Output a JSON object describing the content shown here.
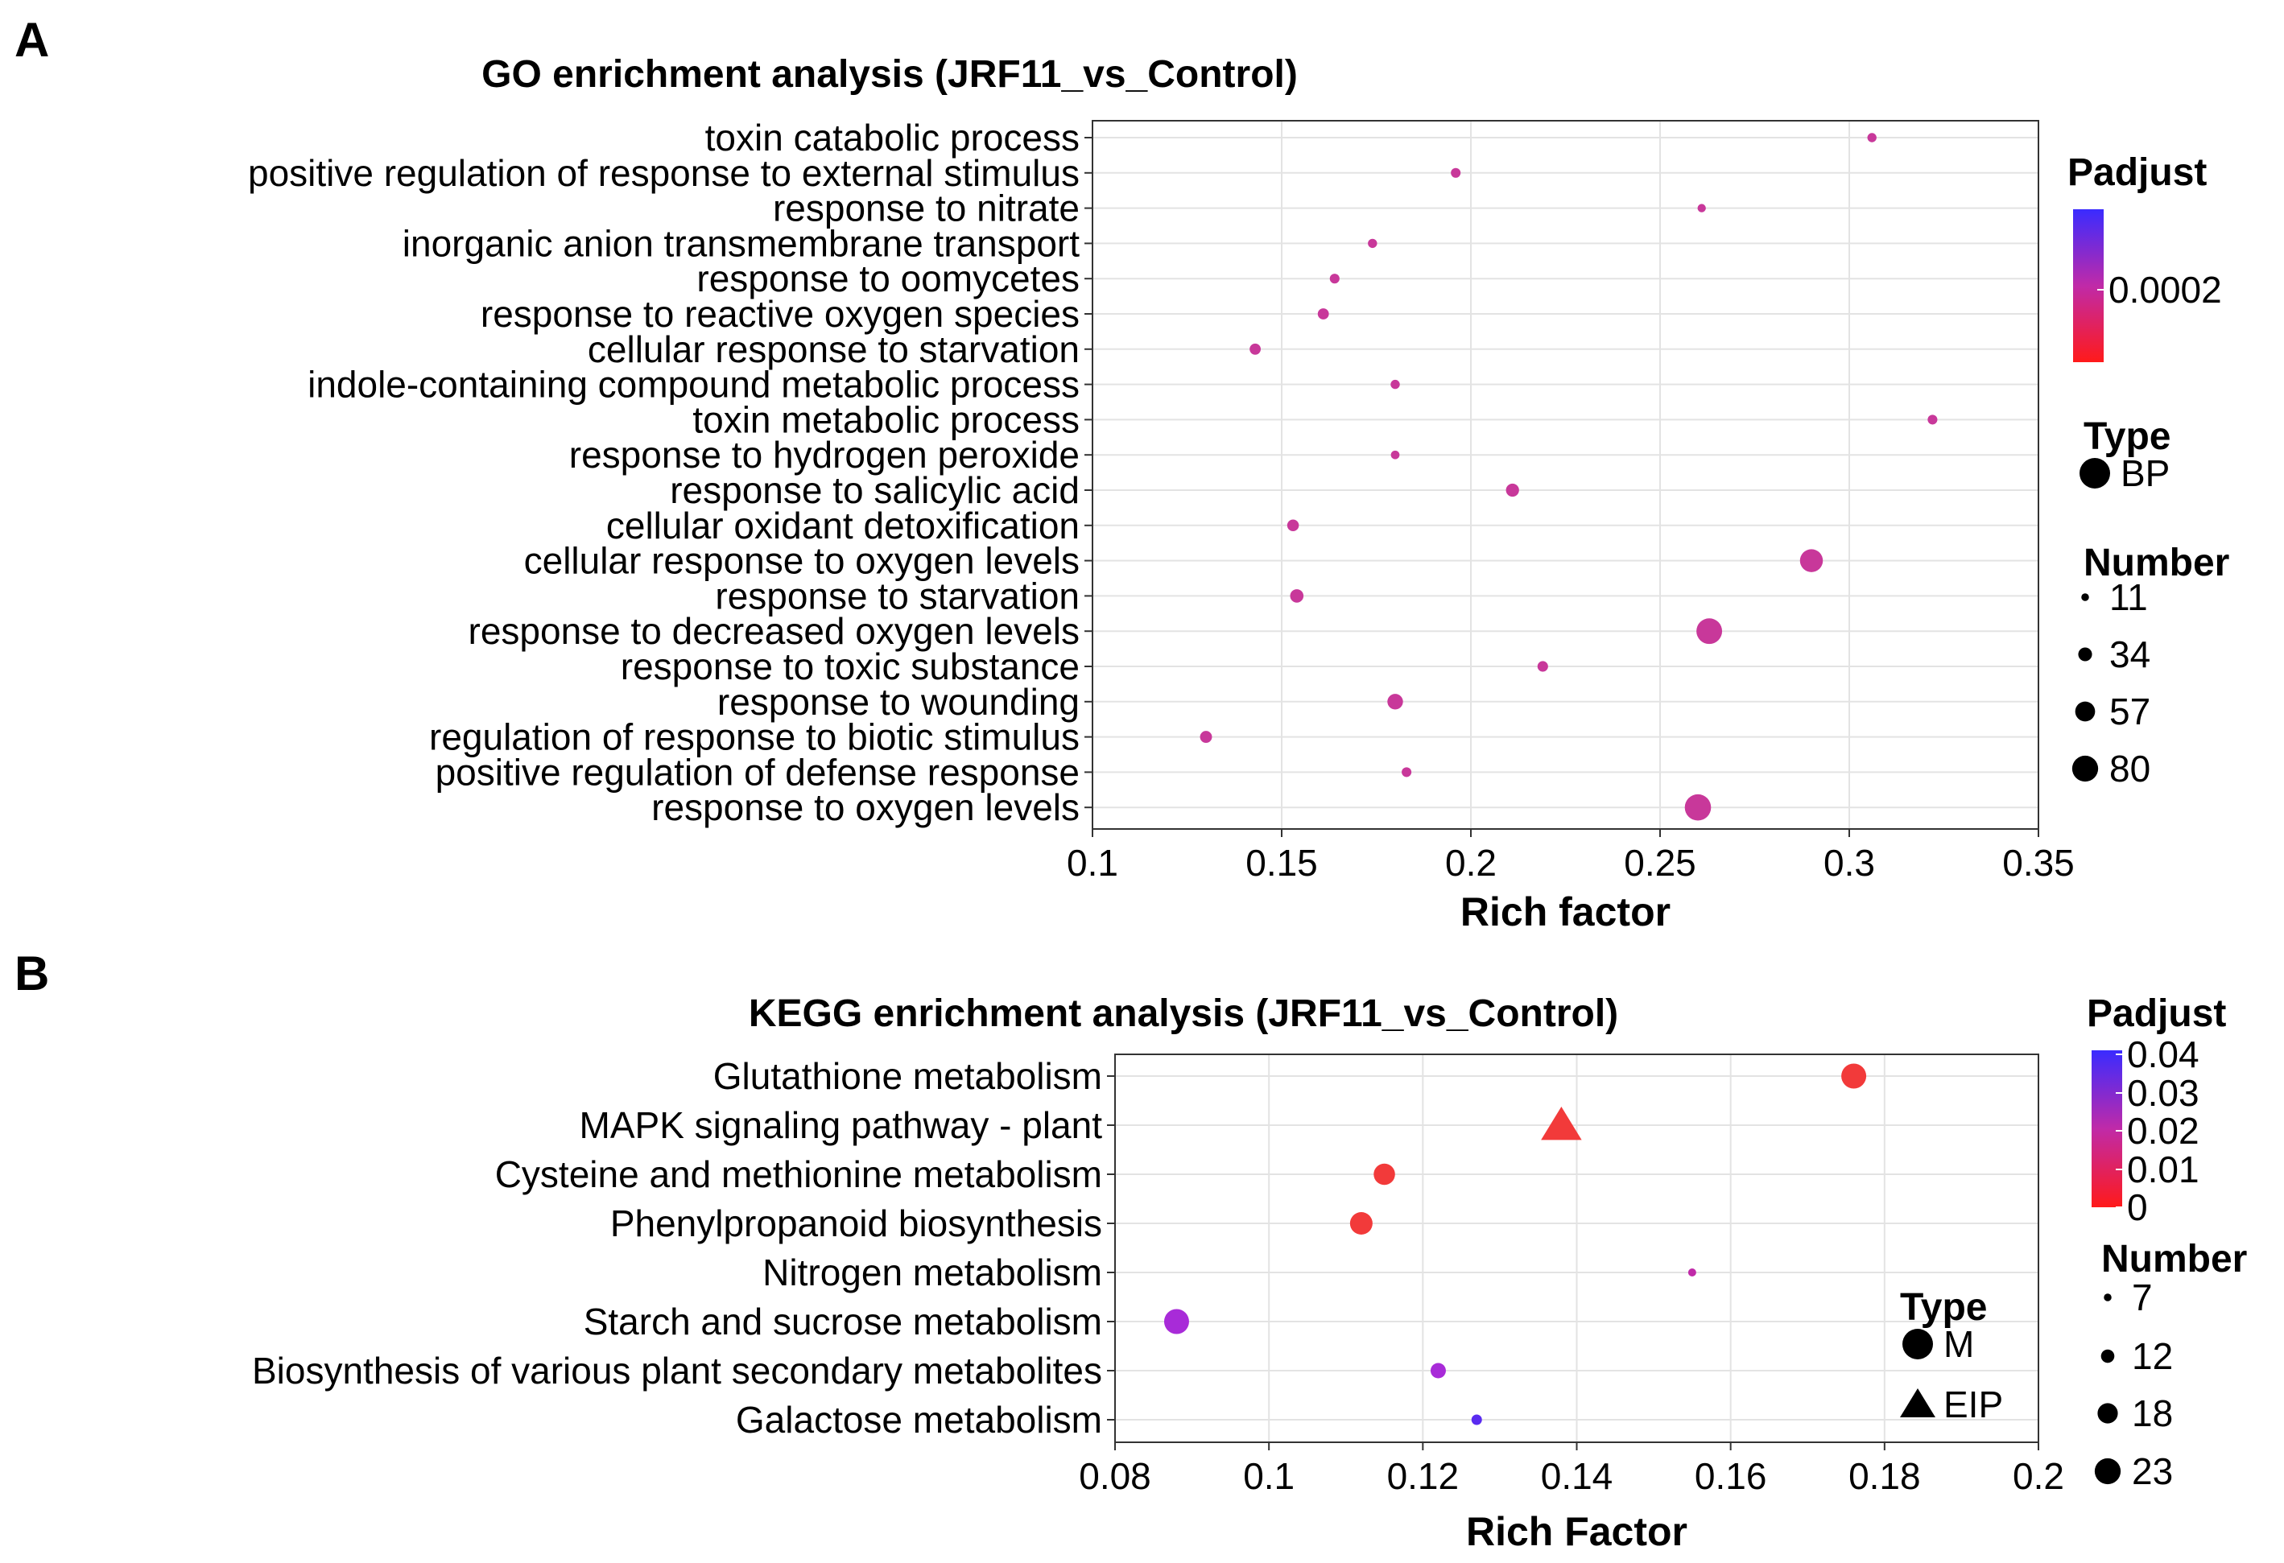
{
  "chart_data": [
    {
      "panel": "A",
      "type": "scatter",
      "title": "GO enrichment analysis (JRF11_vs_Control)",
      "xlabel": "Rich factor",
      "ylabel": "",
      "xlim": [
        0.1,
        0.35
      ],
      "x_ticks": [
        {
          "value": 0.1,
          "label": "0.1"
        },
        {
          "value": 0.15,
          "label": "0.15"
        },
        {
          "value": 0.2,
          "label": "0.2"
        },
        {
          "value": 0.25,
          "label": "0.25"
        },
        {
          "value": 0.3,
          "label": "0.3"
        },
        {
          "value": 0.35,
          "label": "0.35"
        }
      ],
      "grid": true,
      "legend_position": "right",
      "color_legend": {
        "title": "Padjust",
        "high_color": "#3a2bff",
        "low_color": "#ff1a1a",
        "tick_labels": [
          "0.0002"
        ]
      },
      "shape_legend": {
        "title": "Type",
        "items": [
          {
            "label": "BP",
            "shape": "circle"
          }
        ]
      },
      "size_legend": {
        "title": "Number",
        "items": [
          {
            "value": 11,
            "label": "11"
          },
          {
            "value": 34,
            "label": "34"
          },
          {
            "value": 57,
            "label": "57"
          },
          {
            "value": 80,
            "label": "80"
          }
        ]
      },
      "points": [
        {
          "term": "toxin catabolic process",
          "rich_factor": 0.306,
          "number": 15,
          "shape": "circle",
          "color": "#c8389a"
        },
        {
          "term": "positive regulation of response to external stimulus",
          "rich_factor": 0.196,
          "number": 17,
          "shape": "circle",
          "color": "#c8389a"
        },
        {
          "term": "response to nitrate",
          "rich_factor": 0.261,
          "number": 12,
          "shape": "circle",
          "color": "#c8389a"
        },
        {
          "term": "inorganic anion transmembrane transport",
          "rich_factor": 0.174,
          "number": 15,
          "shape": "circle",
          "color": "#c8389a"
        },
        {
          "term": "response to oomycetes",
          "rich_factor": 0.164,
          "number": 17,
          "shape": "circle",
          "color": "#c8389a"
        },
        {
          "term": "response to reactive oxygen species",
          "rich_factor": 0.161,
          "number": 22,
          "shape": "circle",
          "color": "#c8389a"
        },
        {
          "term": "cellular response to starvation",
          "rich_factor": 0.143,
          "number": 22,
          "shape": "circle",
          "color": "#c8389a"
        },
        {
          "term": "indole-containing compound metabolic process",
          "rich_factor": 0.18,
          "number": 15,
          "shape": "circle",
          "color": "#c8389a"
        },
        {
          "term": "toxin metabolic process",
          "rich_factor": 0.322,
          "number": 17,
          "shape": "circle",
          "color": "#c8389a"
        },
        {
          "term": "response to hydrogen peroxide",
          "rich_factor": 0.18,
          "number": 13,
          "shape": "circle",
          "color": "#c8389a"
        },
        {
          "term": "response to salicylic acid",
          "rich_factor": 0.211,
          "number": 29,
          "shape": "circle",
          "color": "#c8389a"
        },
        {
          "term": "cellular oxidant detoxification",
          "rich_factor": 0.153,
          "number": 24,
          "shape": "circle",
          "color": "#c8389a"
        },
        {
          "term": "cellular response to oxygen levels",
          "rich_factor": 0.29,
          "number": 64,
          "shape": "circle",
          "color": "#c8389a"
        },
        {
          "term": "response to starvation",
          "rich_factor": 0.154,
          "number": 30,
          "shape": "circle",
          "color": "#c8389a"
        },
        {
          "term": "response to decreased oxygen levels",
          "rich_factor": 0.263,
          "number": 74,
          "shape": "circle",
          "color": "#c8389a"
        },
        {
          "term": "response to toxic substance",
          "rich_factor": 0.219,
          "number": 20,
          "shape": "circle",
          "color": "#c8389a"
        },
        {
          "term": "response to wounding",
          "rich_factor": 0.18,
          "number": 38,
          "shape": "circle",
          "color": "#c8389a"
        },
        {
          "term": "regulation of response to biotic stimulus",
          "rich_factor": 0.13,
          "number": 25,
          "shape": "circle",
          "color": "#c8389a"
        },
        {
          "term": "positive regulation of defense response",
          "rich_factor": 0.183,
          "number": 17,
          "shape": "circle",
          "color": "#c8389a"
        },
        {
          "term": "response to oxygen levels",
          "rich_factor": 0.26,
          "number": 76,
          "shape": "circle",
          "color": "#c8389a"
        }
      ]
    },
    {
      "panel": "B",
      "type": "scatter",
      "title": "KEGG enrichment analysis (JRF11_vs_Control)",
      "xlabel": "Rich Factor",
      "ylabel": "",
      "xlim": [
        0.08,
        0.2
      ],
      "x_ticks": [
        {
          "value": 0.08,
          "label": "0.08"
        },
        {
          "value": 0.1,
          "label": "0.1"
        },
        {
          "value": 0.12,
          "label": "0.12"
        },
        {
          "value": 0.14,
          "label": "0.14"
        },
        {
          "value": 0.16,
          "label": "0.16"
        },
        {
          "value": 0.18,
          "label": "0.18"
        },
        {
          "value": 0.2,
          "label": "0.2"
        }
      ],
      "grid": true,
      "legend_position": "right",
      "color_legend": {
        "title": "Padjust",
        "high_color": "#3a2bff",
        "low_color": "#ff1a1a",
        "tick_labels": [
          "0.04",
          "0.03",
          "0.02",
          "0.01",
          "0"
        ]
      },
      "shape_legend": {
        "title": "Type",
        "items": [
          {
            "label": "M",
            "shape": "circle"
          },
          {
            "label": "EIP",
            "shape": "triangle"
          }
        ]
      },
      "size_legend": {
        "title": "Number",
        "items": [
          {
            "value": 7,
            "label": "7"
          },
          {
            "value": 12,
            "label": "12"
          },
          {
            "value": 18,
            "label": "18"
          },
          {
            "value": 23,
            "label": "23"
          }
        ]
      },
      "points": [
        {
          "term": "Glutathione metabolism",
          "rich_factor": 0.176,
          "number": 21,
          "shape": "circle",
          "color": "#f23a3a"
        },
        {
          "term": "MAPK signaling pathway - plant",
          "rich_factor": 0.138,
          "number": 23,
          "shape": "triangle",
          "color": "#f23a3a"
        },
        {
          "term": "Cysteine and methionine metabolism",
          "rich_factor": 0.115,
          "number": 18,
          "shape": "circle",
          "color": "#f23a3a"
        },
        {
          "term": "Phenylpropanoid biosynthesis",
          "rich_factor": 0.112,
          "number": 19,
          "shape": "circle",
          "color": "#f23a3a"
        },
        {
          "term": "Nitrogen metabolism",
          "rich_factor": 0.155,
          "number": 7,
          "shape": "circle",
          "color": "#c02aa8"
        },
        {
          "term": "Starch and sucrose metabolism",
          "rich_factor": 0.088,
          "number": 21,
          "shape": "circle",
          "color": "#a82bd8"
        },
        {
          "term": "Biosynthesis of various plant secondary metabolites",
          "rich_factor": 0.122,
          "number": 13,
          "shape": "circle",
          "color": "#a82bd8"
        },
        {
          "term": "Galactose metabolism",
          "rich_factor": 0.127,
          "number": 9,
          "shape": "circle",
          "color": "#5a2bf0"
        }
      ]
    }
  ]
}
